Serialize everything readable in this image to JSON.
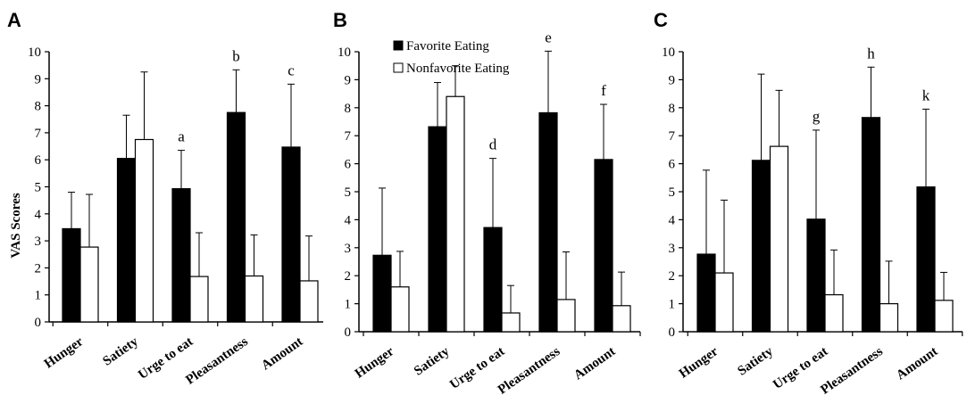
{
  "y_axis_label": "VAS  Scores",
  "legend": {
    "favorite": "Favorite Eating",
    "nonfavorite": "Nonfavorite Eating"
  },
  "colors": {
    "favorite": "#000000",
    "nonfavorite": "#ffffff",
    "stroke": "#000000"
  },
  "chart_data": [
    {
      "type": "bar",
      "panel": "A",
      "categories": [
        "Hunger",
        "Satiety",
        "Urge to eat",
        "Pleasantness",
        "Amount"
      ],
      "ylim": [
        0,
        10
      ],
      "yticks": [
        0,
        1,
        2,
        3,
        4,
        5,
        6,
        7,
        8,
        9,
        10
      ],
      "ylabel": "VAS  Scores",
      "series": [
        {
          "name": "Favorite Eating",
          "values": [
            3.45,
            6.05,
            4.93,
            7.75,
            6.47
          ],
          "errors": [
            1.35,
            1.6,
            1.42,
            1.58,
            2.33
          ]
        },
        {
          "name": "Nonfavorite Eating",
          "values": [
            2.77,
            6.75,
            1.68,
            1.7,
            1.52
          ],
          "errors": [
            1.95,
            2.5,
            1.62,
            1.52,
            1.66
          ]
        }
      ],
      "annotations": [
        "",
        "",
        "a",
        "b",
        "c"
      ]
    },
    {
      "type": "bar",
      "panel": "B",
      "categories": [
        "Hunger",
        "Satiety",
        "Urge to eat",
        "Pleasantness",
        "Amount"
      ],
      "ylim": [
        0,
        10
      ],
      "yticks": [
        0,
        1,
        2,
        3,
        4,
        5,
        6,
        7,
        8,
        9,
        10
      ],
      "series": [
        {
          "name": "Favorite Eating",
          "values": [
            2.73,
            7.32,
            3.72,
            7.82,
            6.15
          ],
          "errors": [
            2.4,
            1.58,
            2.47,
            2.2,
            1.97
          ]
        },
        {
          "name": "Nonfavorite Eating",
          "values": [
            1.6,
            8.4,
            0.67,
            1.15,
            0.93
          ],
          "errors": [
            1.27,
            1.1,
            0.98,
            1.7,
            1.2
          ]
        }
      ],
      "annotations": [
        "",
        "",
        "d",
        "e",
        "f"
      ]
    },
    {
      "type": "bar",
      "panel": "C",
      "categories": [
        "Hunger",
        "Satiety",
        "Urge to eat",
        "Pleasantness",
        "Amount"
      ],
      "ylim": [
        0,
        10
      ],
      "yticks": [
        0,
        1,
        2,
        3,
        4,
        5,
        6,
        7,
        8,
        9,
        10
      ],
      "series": [
        {
          "name": "Favorite Eating",
          "values": [
            2.77,
            6.12,
            4.02,
            7.65,
            5.17
          ],
          "errors": [
            3.0,
            3.08,
            3.18,
            1.8,
            2.78
          ]
        },
        {
          "name": "Nonfavorite Eating",
          "values": [
            2.1,
            6.62,
            1.32,
            1.0,
            1.12
          ],
          "errors": [
            2.6,
            2.0,
            1.6,
            1.52,
            1.0
          ]
        }
      ],
      "annotations": [
        "",
        "",
        "g",
        "h",
        "k"
      ]
    }
  ]
}
